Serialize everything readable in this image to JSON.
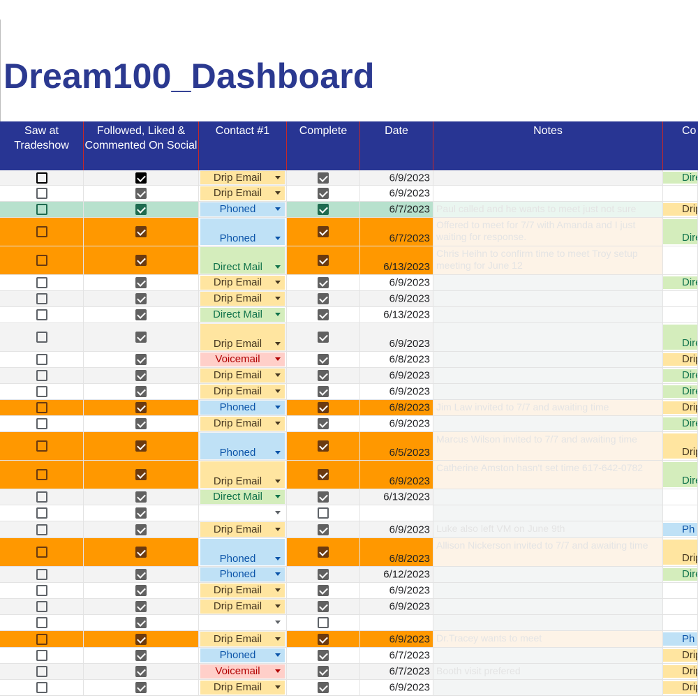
{
  "title": "Dream100_Dashboard",
  "columns": [
    "Saw at Tradeshow",
    "Followed, Liked & Commented On Social",
    "Contact #1",
    "Complete",
    "Date",
    "Notes",
    "Co"
  ],
  "colors": {
    "header_bg": "#283593",
    "header_divider": "#c62828",
    "title": "#2b3990",
    "orange_row": "#ff9800",
    "teal_row": "#b7e1cd",
    "drip_email_bg": "#ffe5a0",
    "drip_email_fg": "#473821",
    "phoned_bg": "#bfe1f6",
    "phoned_fg": "#0a53a8",
    "direct_mail_bg": "#d4edbc",
    "direct_mail_fg": "#11734b",
    "voicemail_bg": "#ffcfc9",
    "voicemail_fg": "#b10202"
  },
  "rows": [
    {
      "saw": false,
      "followed": true,
      "contact": "Drip Email",
      "complete": true,
      "date": "6/9/2023",
      "notes": "",
      "next": "Dire",
      "style": "black"
    },
    {
      "saw": false,
      "followed": true,
      "contact": "Drip Email",
      "complete": true,
      "date": "6/9/2023",
      "notes": "",
      "next": "",
      "style": "normal"
    },
    {
      "saw": false,
      "followed": true,
      "contact": "Phoned",
      "complete": true,
      "date": "6/7/2023",
      "notes": "Paul called and he wants to meet just not sure",
      "next": "Drip",
      "style": "teal"
    },
    {
      "saw": false,
      "followed": true,
      "contact": "Phoned",
      "complete": true,
      "date": "6/7/2023",
      "notes": "Offered to meet for 7/7 with Amanda and I just waiting for response.",
      "next": "Dire",
      "style": "orange"
    },
    {
      "saw": false,
      "followed": true,
      "contact": "Direct Mail",
      "complete": true,
      "date": "6/13/2023",
      "notes": "Chris Heihn to confirm time to meet Troy setup meeting for June 12",
      "next": "",
      "style": "orange"
    },
    {
      "saw": false,
      "followed": true,
      "contact": "Drip Email",
      "complete": true,
      "date": "6/9/2023",
      "notes": "",
      "next": "Dire",
      "style": "normal"
    },
    {
      "saw": false,
      "followed": true,
      "contact": "Drip Email",
      "complete": true,
      "date": "6/9/2023",
      "notes": "",
      "next": "",
      "style": "normal"
    },
    {
      "saw": false,
      "followed": true,
      "contact": "Direct Mail",
      "complete": true,
      "date": "6/13/2023",
      "notes": "",
      "next": "",
      "style": "normal"
    },
    {
      "saw": false,
      "followed": true,
      "contact": "Drip Email",
      "complete": true,
      "date": "6/9/2023",
      "notes": "",
      "next": "Dire",
      "style": "normal"
    },
    {
      "saw": false,
      "followed": true,
      "contact": "Voicemail",
      "complete": true,
      "date": "6/8/2023",
      "notes": "",
      "next": "Drip",
      "style": "normal"
    },
    {
      "saw": false,
      "followed": true,
      "contact": "Drip Email",
      "complete": true,
      "date": "6/9/2023",
      "notes": "",
      "next": "Dire",
      "style": "normal"
    },
    {
      "saw": false,
      "followed": true,
      "contact": "Drip Email",
      "complete": true,
      "date": "6/9/2023",
      "notes": "",
      "next": "Dire",
      "style": "normal"
    },
    {
      "saw": false,
      "followed": true,
      "contact": "Phoned",
      "complete": true,
      "date": "6/8/2023",
      "notes": "Jim Law invited to 7/7 and awaiting time",
      "next": "Drip",
      "style": "orange"
    },
    {
      "saw": false,
      "followed": true,
      "contact": "Drip Email",
      "complete": true,
      "date": "6/9/2023",
      "notes": "",
      "next": "Dire",
      "style": "normal"
    },
    {
      "saw": false,
      "followed": true,
      "contact": "Phoned",
      "complete": true,
      "date": "6/5/2023",
      "notes": "Marcus Wilson invited to 7/7 and awaiting time",
      "next": "Drip",
      "style": "orange"
    },
    {
      "saw": false,
      "followed": true,
      "contact": "Drip Email",
      "complete": true,
      "date": "6/9/2023",
      "notes": "Catherine Amston hasn't set time 617-642-0782",
      "next": "Dire",
      "style": "orange"
    },
    {
      "saw": false,
      "followed": true,
      "contact": "Direct Mail",
      "complete": true,
      "date": "6/13/2023",
      "notes": "",
      "next": "",
      "style": "normal"
    },
    {
      "saw": false,
      "followed": true,
      "contact": "",
      "complete": false,
      "date": "",
      "notes": "",
      "next": "",
      "style": "normal"
    },
    {
      "saw": false,
      "followed": true,
      "contact": "Drip Email",
      "complete": true,
      "date": "6/9/2023",
      "notes": "Luke also left VM on June 9th",
      "next": "Ph",
      "style": "normal"
    },
    {
      "saw": false,
      "followed": true,
      "contact": "Phoned",
      "complete": true,
      "date": "6/8/2023",
      "notes": "Allison Nickerson invited to 7/7 and awaiting time",
      "next": "Drip",
      "style": "orange"
    },
    {
      "saw": false,
      "followed": true,
      "contact": "Phoned",
      "complete": true,
      "date": "6/12/2023",
      "notes": "",
      "next": "Dire",
      "style": "normal"
    },
    {
      "saw": false,
      "followed": true,
      "contact": "Drip Email",
      "complete": true,
      "date": "6/9/2023",
      "notes": "",
      "next": "",
      "style": "normal"
    },
    {
      "saw": false,
      "followed": true,
      "contact": "Drip Email",
      "complete": true,
      "date": "6/9/2023",
      "notes": "",
      "next": "",
      "style": "normal"
    },
    {
      "saw": false,
      "followed": true,
      "contact": "",
      "complete": false,
      "date": "",
      "notes": "",
      "next": "",
      "style": "normal"
    },
    {
      "saw": false,
      "followed": true,
      "contact": "Drip Email",
      "complete": true,
      "date": "6/9/2023",
      "notes": "Dr.Tracey wants to meet",
      "next": "Ph",
      "style": "orange"
    },
    {
      "saw": false,
      "followed": true,
      "contact": "Phoned",
      "complete": true,
      "date": "6/7/2023",
      "notes": "",
      "next": "Drip",
      "style": "normal"
    },
    {
      "saw": false,
      "followed": true,
      "contact": "Voicemail",
      "complete": true,
      "date": "6/7/2023",
      "notes": "Booth visit prefered",
      "next": "Drip",
      "style": "normal"
    },
    {
      "saw": false,
      "followed": true,
      "contact": "Drip Email",
      "complete": true,
      "date": "6/9/2023",
      "notes": "",
      "next": "Drip",
      "style": "normal"
    }
  ]
}
